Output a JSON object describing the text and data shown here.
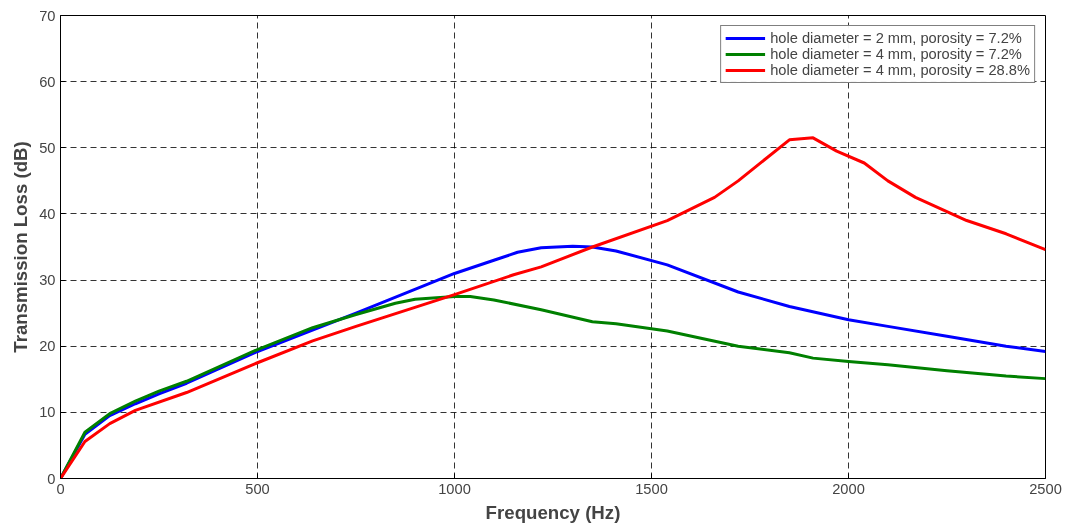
{
  "chart_data": {
    "type": "line",
    "xlabel": "Frequency (Hz)",
    "ylabel": "Transmission Loss (dB)",
    "xlim": [
      0,
      2500
    ],
    "ylim": [
      0,
      70
    ],
    "xticks": [
      0,
      500,
      1000,
      1500,
      2000,
      2500
    ],
    "yticks": [
      0,
      10,
      20,
      30,
      40,
      50,
      60,
      70
    ],
    "grid": true,
    "legend": "top right",
    "line_style": "solid",
    "series": [
      {
        "name": "hole diameter = 2 mm, porosity = 7.2%",
        "color": "#0000ff",
        "x": [
          0,
          62,
          125,
          190,
          250,
          320,
          500,
          750,
          1000,
          1100,
          1160,
          1220,
          1300,
          1350,
          1410,
          1540,
          1720,
          1850,
          2000,
          2100,
          2250,
          2400,
          2500
        ],
        "values": [
          0,
          6.7,
          9.5,
          11.3,
          12.8,
          14.4,
          19.2,
          25,
          31,
          33,
          34.2,
          34.9,
          35.1,
          35,
          34.4,
          32.3,
          28.2,
          26,
          24,
          23,
          21.5,
          20,
          19.2
        ]
      },
      {
        "name": "hole diameter = 4 mm, porosity = 7.2%",
        "color": "#008000",
        "x": [
          0,
          62,
          125,
          190,
          250,
          320,
          500,
          640,
          750,
          850,
          900,
          1000,
          1040,
          1100,
          1220,
          1350,
          1410,
          1540,
          1720,
          1850,
          1910,
          2000,
          2100,
          2250,
          2400,
          2500
        ],
        "values": [
          0,
          7,
          9.8,
          11.7,
          13.2,
          14.7,
          19.5,
          22.8,
          24.8,
          26.5,
          27.1,
          27.5,
          27.5,
          27,
          25.5,
          23.7,
          23.4,
          22.3,
          20,
          19,
          18.2,
          17.7,
          17.2,
          16.3,
          15.5,
          15.1
        ]
      },
      {
        "name": "hole diameter = 4 mm, porosity = 28.8%",
        "color": "#ff0000",
        "x": [
          0,
          62,
          125,
          190,
          320,
          500,
          640,
          750,
          1000,
          1150,
          1220,
          1350,
          1540,
          1660,
          1720,
          1850,
          1910,
          1970,
          2040,
          2100,
          2170,
          2300,
          2400,
          2500
        ],
        "values": [
          0,
          5.6,
          8.3,
          10.3,
          13,
          17.5,
          20.8,
          23,
          27.8,
          30.8,
          32,
          35,
          39,
          42.5,
          45,
          51.2,
          51.5,
          49.5,
          47.7,
          45,
          42.5,
          39,
          37,
          34.6
        ]
      }
    ]
  }
}
